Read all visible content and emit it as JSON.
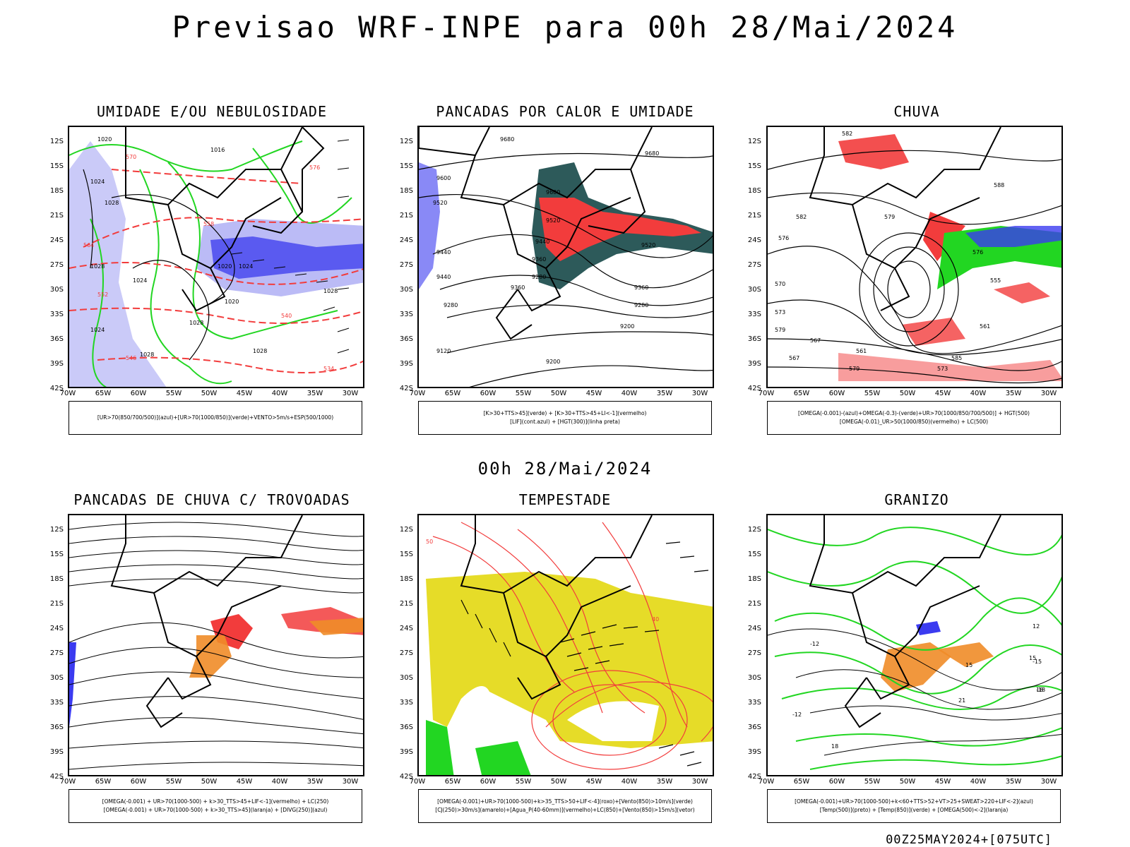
{
  "title": "Previsao WRF-INPE  para 00h 28/Mai/2024",
  "mid_date": "00h 28/Mai/2024",
  "footer": "00Z25MAY2024+[075UTC]",
  "lat_ticks": [
    "12S",
    "15S",
    "18S",
    "21S",
    "24S",
    "27S",
    "30S",
    "33S",
    "36S",
    "39S",
    "42S"
  ],
  "lon_ticks": [
    "70W",
    "65W",
    "60W",
    "55W",
    "50W",
    "45W",
    "40W",
    "35W",
    "30W"
  ],
  "panels": [
    {
      "title": "UMIDADE E/OU NEBULOSIDADE",
      "legend": [
        "[UR>70(850/700/500)](azul)+[UR>70(1000/850)](verde)+VENTO>5m/s+ESP(500/1000)"
      ],
      "contour_labels": [
        "1020",
        "1016",
        "1024",
        "1028",
        "1020",
        "1024",
        "1028",
        "1024",
        "1028",
        "1028",
        "1020",
        "1028",
        "1024",
        "1028",
        "570",
        "564",
        "558",
        "552",
        "546",
        "540",
        "534",
        "576"
      ]
    },
    {
      "title": "PANCADAS POR CALOR E UMIDADE",
      "legend": [
        "[K>30+TTS>45](verde) + [K>30+TTS>45+LI<-1](vermelho)",
        "[LIF](cont.azul) + [HGT(300)](linha preta)"
      ],
      "contour_labels": [
        "9680",
        "9680",
        "9600",
        "9520",
        "9600",
        "9520",
        "9520",
        "9440",
        "9440",
        "9360",
        "9280",
        "9440",
        "9360",
        "9280",
        "9360",
        "9280",
        "9200",
        "9120",
        "9200"
      ]
    },
    {
      "title": "CHUVA",
      "legend": [
        "[OMEGA(-0.001)-(azul)+OMEGA(-0.3)-(verde)+UR>70(1000/850/700/500)] + HGT(500)",
        "[OMEGA(-0.01)_UR>50(1000/850)(vermelho) + LC(500)"
      ],
      "contour_labels": [
        "582",
        "588",
        "582",
        "576",
        "570",
        "579",
        "573",
        "567",
        "561",
        "579",
        "573",
        "567",
        "561",
        "555",
        "576",
        "579",
        "585"
      ]
    },
    {
      "title": "PANCADAS DE CHUVA C/ TROVOADAS",
      "legend": [
        "[OMEGA(-0.001) + UR>70(1000-500) + k>30_TTS>45+LIF<-1](vermelho) + LC(250)",
        "[OMEGA(-0.001) + UR>70(1000-500) + k>30_TTS>45](laranja) + [DIVG(250)](azul)"
      ],
      "contour_labels": []
    },
    {
      "title": "TEMPESTADE",
      "legend": [
        "[OMEGA(-0.001)+UR>70(1000-500)+k>35_TTS>50+LIF<-4](roxo)+[Vento(850)>10m/s](verde)",
        "[CJ(250)>30m/s](amarelo)+[Agua_P(40-60mm)](vermelho)+LC(850)+[Vento(850)>15m/s](vetor)"
      ],
      "contour_labels": [
        "50",
        "40"
      ]
    },
    {
      "title": "GRANIZO",
      "legend": [
        "[OMEGA(-0.001)+UR>70(1000-500)+k<60+TTS>52+VT>25+SWEAT>220+LIF<-2](azul)",
        "[Temp(500)](preto) + [Temp(850)](verde) + [OMEGA(500)<-2](laranja)"
      ],
      "contour_labels": [
        "-12",
        "-15",
        "-18",
        "-12",
        "12",
        "15",
        "18",
        "21",
        "18",
        "15"
      ]
    }
  ],
  "colors": {
    "blue": "#3b3bf0",
    "green": "#22d622",
    "red": "#f23c3c",
    "orange": "#f08c28",
    "yellow": "#e6dc28",
    "teal": "#2d5a5a",
    "lightblue": "#b4b4f5"
  }
}
